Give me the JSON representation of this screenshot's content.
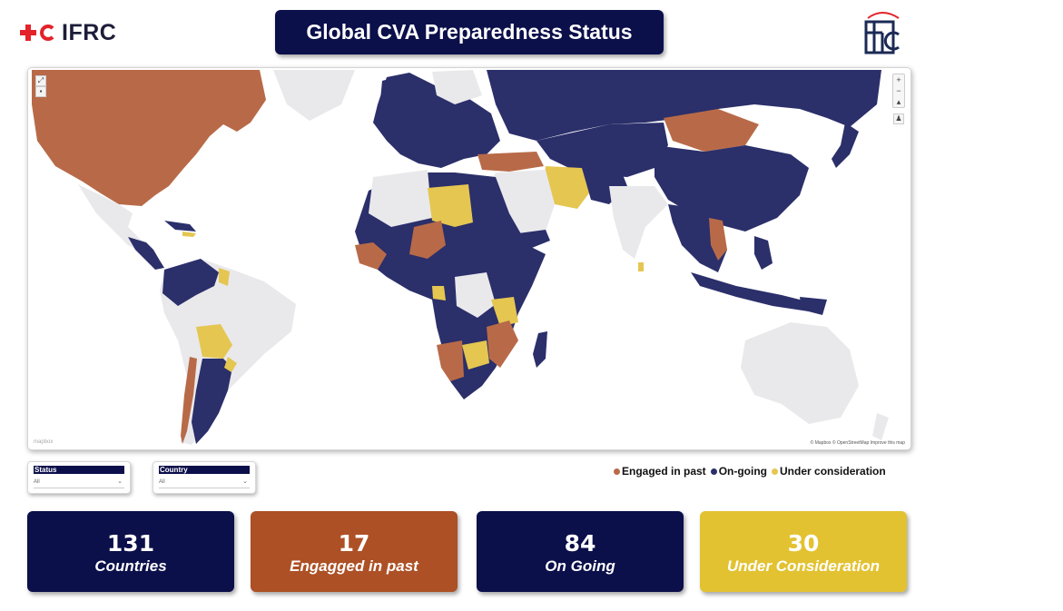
{
  "header": {
    "brand": "IFRC",
    "title": "Global CVA Preparedness Status"
  },
  "colors": {
    "engaged": "#b86a48",
    "ongoing": "#2b2f6a",
    "consideration": "#e4c651",
    "neutral": "#e9e9ec",
    "navy": "#0b0f4a",
    "kpi_engaged": "#ad5025",
    "kpi_consideration": "#e3c232"
  },
  "map": {
    "attribution": "© Mapbox © OpenStreetMap  Improve this map",
    "logo": "mapbox"
  },
  "filters": {
    "status": {
      "label": "Status",
      "value": "All"
    },
    "country": {
      "label": "Country",
      "value": "All"
    }
  },
  "legend": {
    "items": [
      {
        "label": "Engaged in past",
        "color": "#b86a48"
      },
      {
        "label": "On-going",
        "color": "#2b2f6a"
      },
      {
        "label": "Under consideration",
        "color": "#e4c651"
      }
    ]
  },
  "kpis": [
    {
      "value": "131",
      "label": "Countries",
      "color": "#0b0f4a"
    },
    {
      "value": "17",
      "label": "Engagged in past",
      "color": "#ad5025"
    },
    {
      "value": "84",
      "label": "On Going",
      "color": "#0b0f4a"
    },
    {
      "value": "30",
      "label": "Under Consideration",
      "color": "#e3c232"
    }
  ]
}
